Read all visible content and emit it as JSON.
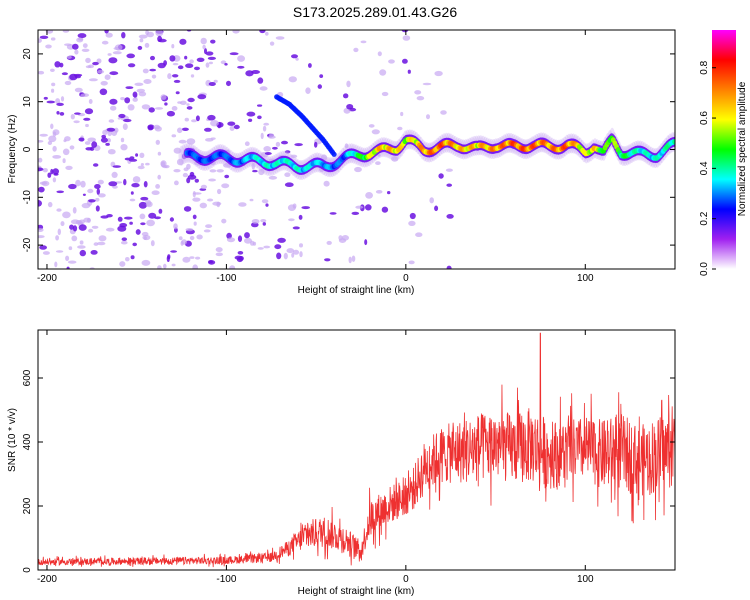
{
  "title": "S173.2025.289.01.43.G26",
  "colors": {
    "snr_line": "#ee3030",
    "scatter_light": "#c8a8f2",
    "scatter_dark": "#6a10e0",
    "axis": "#000000"
  },
  "chart_data": [
    {
      "type": "heatmap",
      "title": "S173.2025.289.01.43.G26",
      "xlabel": "Height of straight line (km)",
      "ylabel": "Frequency (Hz)",
      "xlim": [
        -205,
        150
      ],
      "ylim": [
        -25,
        25
      ],
      "xticks": [
        -200,
        -100,
        0,
        100
      ],
      "yticks": [
        -20,
        -10,
        0,
        10,
        20
      ],
      "xtick_labels": [
        "-200",
        "-100",
        "0",
        "100"
      ],
      "ytick_labels": [
        "-20",
        "-10",
        "0",
        "10",
        "20"
      ],
      "colorbar": {
        "label": "Normalized spectral amplitude",
        "range": [
          0,
          0.95
        ],
        "ticks": [
          0.0,
          0.2,
          0.4,
          0.6,
          0.8
        ],
        "tick_labels": [
          "0.0",
          "0.2",
          "0.4",
          "0.6",
          "0.8"
        ],
        "colormap": [
          "#ffffff",
          "#a020f0",
          "#0000ff",
          "#00ffff",
          "#00ff00",
          "#ffff00",
          "#ff8000",
          "#ff0000",
          "#ff00ff"
        ]
      },
      "main_track": {
        "x": [
          -120,
          -100,
          -80,
          -60,
          -45,
          -35,
          -25,
          -15,
          -5,
          0,
          10,
          20,
          30,
          40,
          50,
          60,
          70,
          80,
          90,
          100,
          105,
          110,
          115,
          120,
          130,
          140,
          150
        ],
        "freq": [
          -1.5,
          -1.8,
          -2.5,
          -3.5,
          -3.5,
          -2.0,
          -1.0,
          -0.5,
          0.5,
          2.0,
          0.0,
          0.5,
          1.0,
          0.0,
          1.0,
          0.5,
          1.0,
          0.5,
          1.0,
          -0.5,
          1.0,
          -1.0,
          2.0,
          -0.5,
          -1.0,
          -1.0,
          1.0
        ],
        "amplitude": [
          0.3,
          0.3,
          0.4,
          0.4,
          0.35,
          0.3,
          0.5,
          0.7,
          0.7,
          0.6,
          0.75,
          0.8,
          0.7,
          0.7,
          0.75,
          0.8,
          0.8,
          0.75,
          0.8,
          0.6,
          0.7,
          0.5,
          0.6,
          0.5,
          0.4,
          0.4,
          0.45
        ]
      },
      "secondary_track": {
        "x": [
          -72,
          -65,
          -58,
          -52,
          -46,
          -40
        ],
        "freq": [
          11,
          9.5,
          7,
          4.5,
          2,
          -1
        ]
      }
    },
    {
      "type": "line",
      "title": "",
      "xlabel": "Height of straight line (km)",
      "ylabel": "SNR (10 * v/v)",
      "xlim": [
        -205,
        150
      ],
      "ylim": [
        0,
        750
      ],
      "xticks": [
        -200,
        -100,
        0,
        100
      ],
      "yticks": [
        0,
        200,
        400,
        600
      ],
      "xtick_labels": [
        "-200",
        "-100",
        "0",
        "100"
      ],
      "ytick_labels": [
        "0",
        "200",
        "400",
        "600"
      ],
      "envelope_x": [
        -205,
        -100,
        -75,
        -65,
        -55,
        -45,
        -35,
        -25,
        -20,
        -10,
        0,
        5,
        10,
        20,
        30,
        40,
        50,
        60,
        70,
        80,
        90,
        100,
        110,
        120,
        130,
        140,
        150
      ],
      "envelope_mean": [
        25,
        30,
        40,
        70,
        110,
        120,
        100,
        60,
        160,
        200,
        230,
        260,
        320,
        360,
        370,
        380,
        390,
        380,
        390,
        360,
        370,
        380,
        360,
        370,
        340,
        360,
        380
      ],
      "envelope_spread": [
        10,
        12,
        15,
        25,
        45,
        50,
        45,
        30,
        60,
        60,
        60,
        70,
        80,
        90,
        100,
        110,
        110,
        110,
        120,
        110,
        100,
        100,
        110,
        120,
        110,
        120,
        120
      ],
      "peak": {
        "x": 75,
        "y": 740
      }
    }
  ]
}
